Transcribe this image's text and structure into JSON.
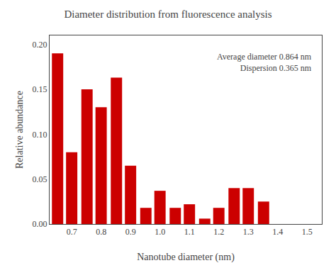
{
  "chart_data": {
    "type": "bar",
    "title": "Diameter distribution from fluorescence analysis",
    "xlabel": "Nanotube diameter (nm)",
    "ylabel": "Relative abundance",
    "x": [
      0.652,
      0.7,
      0.752,
      0.8,
      0.852,
      0.9,
      0.952,
      1.0,
      1.052,
      1.1,
      1.152,
      1.2,
      1.252,
      1.3,
      1.352
    ],
    "values": [
      0.19,
      0.08,
      0.15,
      0.13,
      0.163,
      0.065,
      0.018,
      0.037,
      0.018,
      0.022,
      0.006,
      0.018,
      0.04,
      0.04,
      0.025
    ],
    "color": "#cc0000",
    "xlim": [
      0.625,
      1.55
    ],
    "ylim": [
      0.0,
      0.21
    ],
    "xticks": [
      0.7,
      0.8,
      0.9,
      {
        "value": 1.0,
        "label": "1.0"
      },
      1.1,
      1.2,
      1.3,
      1.4,
      1.5
    ],
    "yticks": [
      {
        "value": 0.0,
        "label": "0.00"
      },
      {
        "value": 0.05,
        "label": "0.05"
      },
      {
        "value": 0.1,
        "label": "0.10"
      },
      {
        "value": 0.15,
        "label": "0.15"
      },
      {
        "value": 0.2,
        "label": "0.20"
      }
    ],
    "annotations": [
      "Average diameter 0.864 nm",
      "Dispersion 0.365 nm"
    ],
    "grid": false
  }
}
